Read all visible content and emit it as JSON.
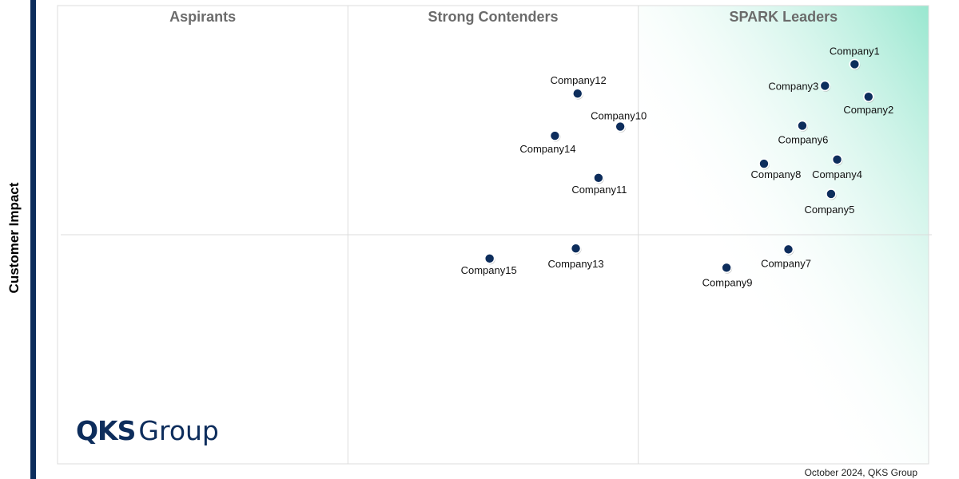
{
  "chart_data": {
    "type": "scatter",
    "title": "",
    "xlabel": "",
    "ylabel": "Customer Impact",
    "quadrants": [
      {
        "label": "Aspirants"
      },
      {
        "label": "Strong Contenders"
      },
      {
        "label": "SPARK Leaders"
      }
    ],
    "points": [
      {
        "name": "Company1",
        "x": 91.5,
        "y": 87.2
      },
      {
        "name": "Company2",
        "x": 93.1,
        "y": 80.1
      },
      {
        "name": "Company3",
        "x": 88.1,
        "y": 82.5
      },
      {
        "name": "Company4",
        "x": 89.5,
        "y": 66.4
      },
      {
        "name": "Company5",
        "x": 88.8,
        "y": 58.9
      },
      {
        "name": "Company6",
        "x": 85.5,
        "y": 73.8
      },
      {
        "name": "Company7",
        "x": 83.9,
        "y": 46.8
      },
      {
        "name": "Company8",
        "x": 81.1,
        "y": 65.5
      },
      {
        "name": "Company9",
        "x": 76.8,
        "y": 42.8
      },
      {
        "name": "Company10",
        "x": 64.6,
        "y": 73.6
      },
      {
        "name": "Company11",
        "x": 62.1,
        "y": 62.4
      },
      {
        "name": "Company12",
        "x": 59.7,
        "y": 80.8
      },
      {
        "name": "Company13",
        "x": 59.5,
        "y": 47.0
      },
      {
        "name": "Company14",
        "x": 57.1,
        "y": 71.6
      },
      {
        "name": "Company15",
        "x": 49.6,
        "y": 44.8
      }
    ],
    "grid": true,
    "leader_color": "#44d3a8",
    "point_color": "#0d2d5c"
  },
  "logo": {
    "bold": "QKS",
    "light": "Group"
  },
  "footer": "October 2024, QKS Group"
}
